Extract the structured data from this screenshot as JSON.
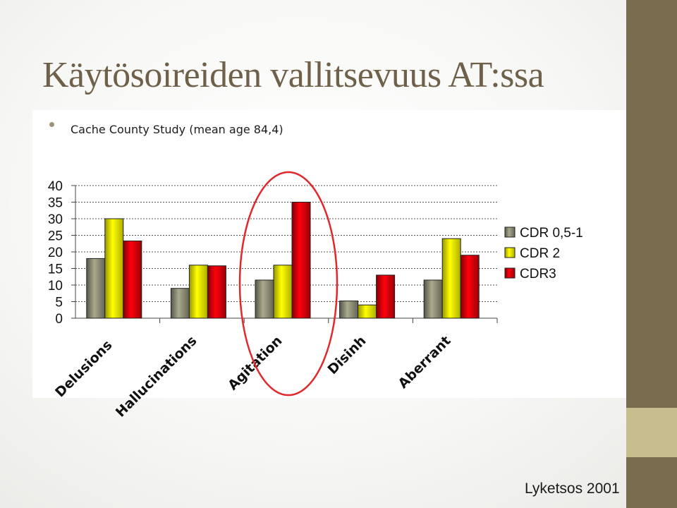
{
  "slide": {
    "title": "Käytösoireiden vallitsevuus AT:ssa",
    "bullet": "Cache County Study (mean age 84,4)",
    "credit": "Lyketsos 2001",
    "colors": {
      "title": "#6f6149",
      "sidebar_dark": "#7a6c4e",
      "sidebar_light": "#c7bd8e",
      "highlight_ellipse": "#e0282d"
    }
  },
  "chart_data": {
    "type": "bar",
    "categories": [
      "Delusions",
      "Hallucinations",
      "Agitation",
      "Disinh",
      "Aberrant"
    ],
    "series": [
      {
        "name": "CDR 0,5-1",
        "values": [
          18,
          9,
          11.5,
          5.2,
          11.5
        ],
        "color": "#8b8b74"
      },
      {
        "name": "CDR 2",
        "values": [
          30,
          16,
          16,
          4,
          24
        ],
        "color": "#f2f200"
      },
      {
        "name": "CDR3",
        "values": [
          23.3,
          15.8,
          35,
          13,
          19
        ],
        "color": "#d4000a"
      }
    ],
    "yticks": [
      "0",
      "5",
      "10",
      "15",
      "20",
      "25",
      "30",
      "35",
      "40"
    ],
    "ylim": [
      0,
      40
    ],
    "grid": true,
    "legend": "right",
    "highlighted_category": "Agitation"
  }
}
